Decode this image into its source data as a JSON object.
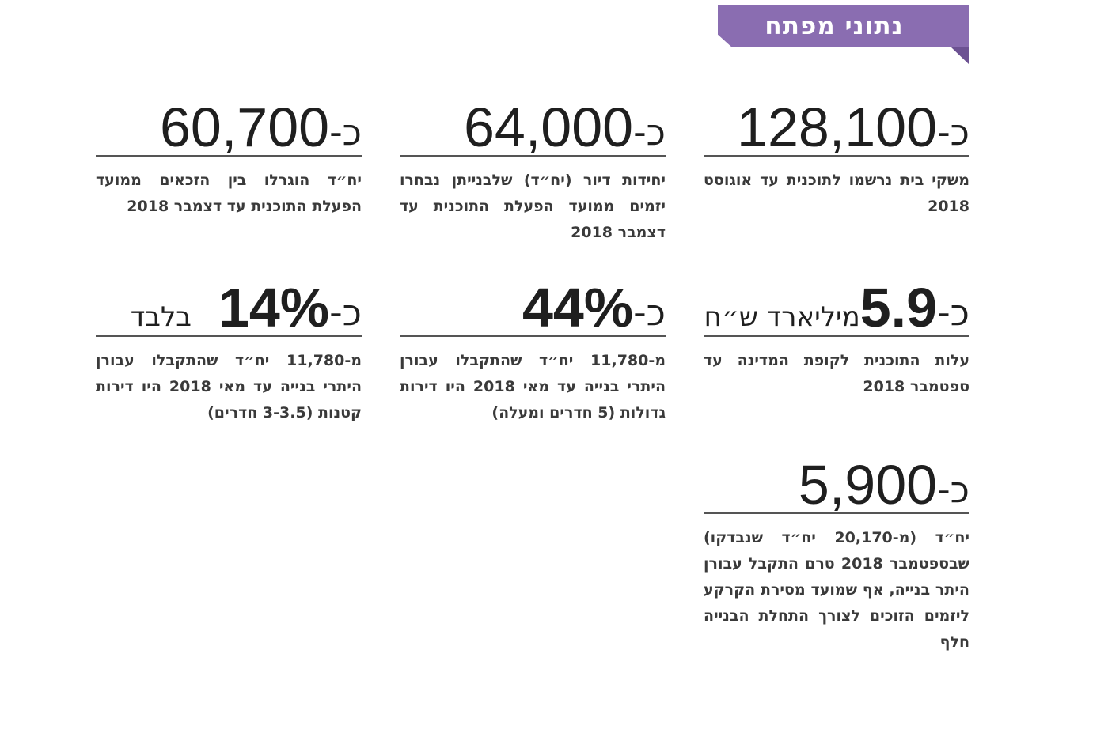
{
  "banner": {
    "title": "נתוני מפתח"
  },
  "colors": {
    "banner": "#8a6db1",
    "banner_fold": "#6c5192",
    "text": "#1f1f1f",
    "rule": "#555555"
  },
  "stats": [
    {
      "prefix": "כ-",
      "value": "128,100",
      "suffix": "",
      "description": "משקי בית נרשמו לתוכנית עד אוגוסט 2018"
    },
    {
      "prefix": "כ-",
      "value": "64,000",
      "suffix": "",
      "description": "יחידות דיור (יח״ד) שלבנייתן נבחרו יזמים ממועד הפעלת התוכנית עד דצמבר 2018"
    },
    {
      "prefix": "כ-",
      "value": "60,700",
      "suffix": "",
      "description": "יח״ד הוגרלו בין הזכאים ממועד הפעלת התוכנית עד דצמבר 2018"
    },
    {
      "prefix": "כ-",
      "value": "5.9",
      "suffix": "מיליארד ש״ח",
      "description": "עלות התוכנית לקופת המדינה עד ספטמבר 2018"
    },
    {
      "prefix": "כ-",
      "value": "44%",
      "suffix": "",
      "description": "מ-11,780 יח״ד שהתקבלו עבורן היתרי בנייה עד מאי 2018 היו דירות גדולות (5 חדרים ומעלה)"
    },
    {
      "prefix": "כ-",
      "value": "14%",
      "suffix": "בלבד",
      "description": "מ-11,780 יח״ד שהתקבלו עבורן היתרי בנייה עד מאי 2018 היו דירות קטנות (3-3.5 חדרים)"
    },
    {
      "prefix": "כ-",
      "value": "5,900",
      "suffix": "",
      "description": "יח״ד (מ-20,170 יח״ד שנבדקו) שבספטמבר 2018 טרם התקבל עבורן היתר בנייה, אף שמועד מסירת הקרקע ליזמים הזוכים לצורך התחלת הבנייה חלף"
    }
  ]
}
